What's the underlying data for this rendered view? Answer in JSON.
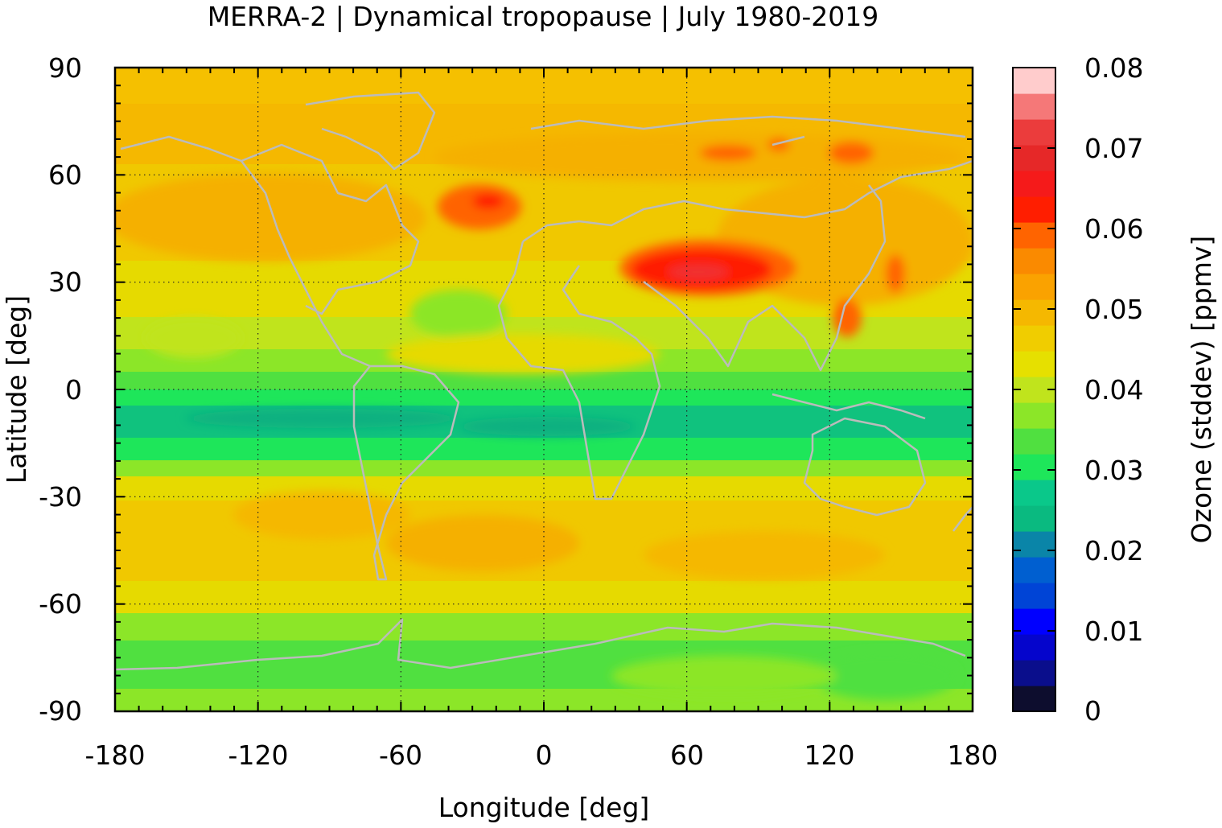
{
  "title": "MERRA-2 | Dynamical tropopause | July 1980-2019",
  "map": {
    "xlabel": "Longitude [deg]",
    "ylabel": "Latitude [deg]",
    "xlim": [
      -180,
      180
    ],
    "ylim": [
      -90,
      90
    ],
    "xticks": [
      "-180",
      "-120",
      "-60",
      "0",
      "60",
      "120",
      "180"
    ],
    "yticks": [
      "90",
      "60",
      "30",
      "0",
      "-30",
      "-60",
      "-90"
    ],
    "grid": true,
    "coastline_color": "#bbbbbb"
  },
  "colorbar": {
    "label": "Ozone (stddev) [ppmv]",
    "range": [
      0,
      0.08
    ],
    "ticks": [
      "0.08",
      "0.07",
      "0.06",
      "0.05",
      "0.04",
      "0.03",
      "0.02",
      "0.01",
      "0"
    ],
    "colors": [
      "#0d0d2e",
      "#0a0e8c",
      "#0505cc",
      "#0000ff",
      "#0044d6",
      "#005fd0",
      "#0a85a8",
      "#0aba80",
      "#0ac88a",
      "#1ee65a",
      "#50e040",
      "#8ce628",
      "#c0e41c",
      "#e6e000",
      "#f0cd00",
      "#f5b800",
      "#faa200",
      "#fa8a00",
      "#ff6400",
      "#ff1e00",
      "#f51a1a",
      "#e62828",
      "#eb3c3c",
      "#f57878",
      "#ffcccc"
    ]
  },
  "features": [
    {
      "type": "maximum",
      "lon": 60,
      "lat": 32,
      "value": 0.065
    },
    {
      "type": "maximum",
      "lon": -25,
      "lat": 52,
      "value": 0.063
    },
    {
      "type": "minimum_band",
      "lat": -7,
      "value": 0.022
    }
  ]
}
